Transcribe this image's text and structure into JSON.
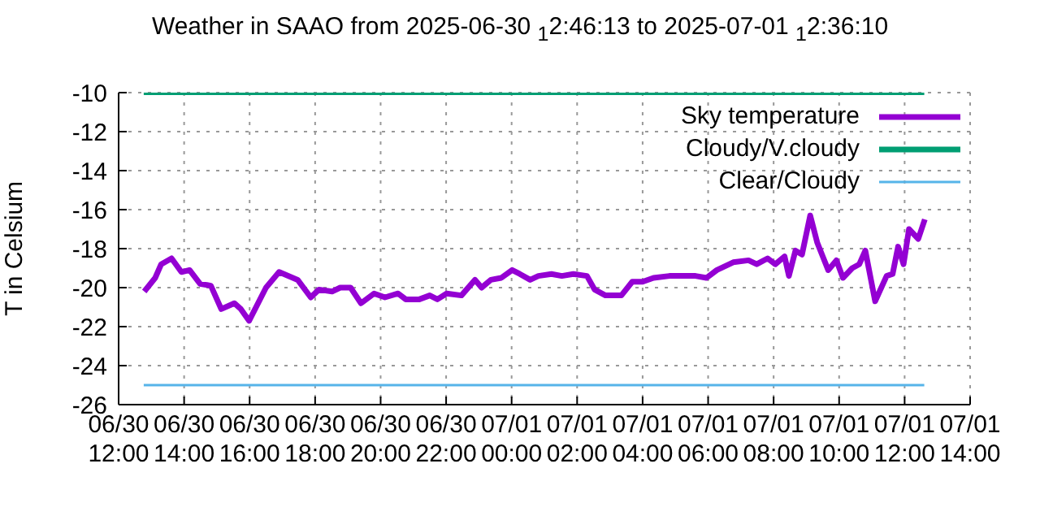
{
  "chart_data": {
    "type": "line",
    "title": "Weather in SAAO from 2025-06-30 $_{1}$2:46:13 to 2025-07-01 $_{1}$2:36:10",
    "ylabel": "T in Celsium",
    "xlim": [
      "2025-06-30T12:00",
      "2025-07-01T14:00"
    ],
    "xticks": [
      {
        "value": "2025-06-30T12:00",
        "label": "06/30\n12:00"
      },
      {
        "value": "2025-06-30T14:00",
        "label": "06/30\n14:00"
      },
      {
        "value": "2025-06-30T16:00",
        "label": "06/30\n16:00"
      },
      {
        "value": "2025-06-30T18:00",
        "label": "06/30\n18:00"
      },
      {
        "value": "2025-06-30T20:00",
        "label": "06/30\n20:00"
      },
      {
        "value": "2025-06-30T22:00",
        "label": "06/30\n22:00"
      },
      {
        "value": "2025-07-01T00:00",
        "label": "07/01\n00:00"
      },
      {
        "value": "2025-07-01T02:00",
        "label": "07/01\n02:00"
      },
      {
        "value": "2025-07-01T04:00",
        "label": "07/01\n04:00"
      },
      {
        "value": "2025-07-01T06:00",
        "label": "07/01\n06:00"
      },
      {
        "value": "2025-07-01T08:00",
        "label": "07/01\n08:00"
      },
      {
        "value": "2025-07-01T10:00",
        "label": "07/01\n10:00"
      },
      {
        "value": "2025-07-01T12:00",
        "label": "07/01\n12:00"
      },
      {
        "value": "2025-07-01T14:00",
        "label": "07/01\n14:00"
      }
    ],
    "ylim": [
      -26,
      -10
    ],
    "yticks": [
      -26,
      -24,
      -22,
      -20,
      -18,
      -16,
      -14,
      -12,
      -10
    ],
    "grid": true,
    "legend": "top right",
    "marker": "none",
    "series": [
      {
        "name": "Sky temperature",
        "color": "#9400d3",
        "x": [
          "2025-06-30T12:47",
          "2025-06-30T13:07",
          "2025-06-30T13:18",
          "2025-06-30T13:37",
          "2025-06-30T13:55",
          "2025-06-30T14:10",
          "2025-06-30T14:29",
          "2025-06-30T14:49",
          "2025-06-30T15:08",
          "2025-06-30T15:32",
          "2025-06-30T15:44",
          "2025-06-30T15:59",
          "2025-06-30T16:30",
          "2025-06-30T16:54",
          "2025-06-30T17:28",
          "2025-06-30T17:52",
          "2025-06-30T18:07",
          "2025-06-30T18:31",
          "2025-06-30T18:46",
          "2025-06-30T19:05",
          "2025-06-30T19:24",
          "2025-06-30T19:48",
          "2025-06-30T20:08",
          "2025-06-30T20:32",
          "2025-06-30T20:46",
          "2025-06-30T21:11",
          "2025-06-30T21:30",
          "2025-06-30T21:44",
          "2025-06-30T22:01",
          "2025-06-30T22:28",
          "2025-06-30T22:53",
          "2025-06-30T23:05",
          "2025-06-30T23:22",
          "2025-06-30T23:41",
          "2025-07-01T00:01",
          "2025-07-01T00:15",
          "2025-07-01T00:34",
          "2025-07-01T00:49",
          "2025-07-01T01:13",
          "2025-07-01T01:32",
          "2025-07-01T01:53",
          "2025-07-01T02:18",
          "2025-07-01T02:32",
          "2025-07-01T02:52",
          "2025-07-01T03:21",
          "2025-07-01T03:41",
          "2025-07-01T04:00",
          "2025-07-01T04:20",
          "2025-07-01T04:49",
          "2025-07-01T05:37",
          "2025-07-01T05:57",
          "2025-07-01T06:16",
          "2025-07-01T06:46",
          "2025-07-01T07:14",
          "2025-07-01T07:29",
          "2025-07-01T07:49",
          "2025-07-01T08:03",
          "2025-07-01T08:20",
          "2025-07-01T08:28",
          "2025-07-01T08:40",
          "2025-07-01T08:52",
          "2025-07-01T09:07",
          "2025-07-01T09:20",
          "2025-07-01T09:40",
          "2025-07-01T09:55",
          "2025-07-01T10:07",
          "2025-07-01T10:24",
          "2025-07-01T10:37",
          "2025-07-01T10:48",
          "2025-07-01T11:06",
          "2025-07-01T11:27",
          "2025-07-01T11:38",
          "2025-07-01T11:48",
          "2025-07-01T11:58",
          "2025-07-01T12:08",
          "2025-07-01T12:25",
          "2025-07-01T12:37"
        ],
        "values": [
          -20.2,
          -19.5,
          -18.8,
          -18.5,
          -19.2,
          -19.1,
          -19.8,
          -19.9,
          -21.1,
          -20.8,
          -21.1,
          -21.7,
          -20,
          -19.2,
          -19.6,
          -20.5,
          -20.1,
          -20.2,
          -20,
          -20,
          -20.8,
          -20.3,
          -20.5,
          -20.3,
          -20.6,
          -20.6,
          -20.4,
          -20.6,
          -20.3,
          -20.4,
          -19.6,
          -20,
          -19.6,
          -19.5,
          -19.1,
          -19.3,
          -19.6,
          -19.4,
          -19.3,
          -19.4,
          -19.3,
          -19.4,
          -20.1,
          -20.4,
          -20.4,
          -19.7,
          -19.7,
          -19.5,
          -19.4,
          -19.4,
          -19.5,
          -19.1,
          -18.7,
          -18.6,
          -18.8,
          -18.5,
          -18.8,
          -18.4,
          -19.4,
          -18.1,
          -18.3,
          -16.3,
          -17.7,
          -19.1,
          -18.6,
          -19.5,
          -19,
          -18.8,
          -18.1,
          -20.7,
          -19.4,
          -19.3,
          -17.9,
          -18.8,
          -17,
          -17.5,
          -16.5
        ]
      },
      {
        "name": "Cloudy/V.cloudy",
        "color": "#009e73",
        "x": [
          "2025-06-30T12:46",
          "2025-07-01T12:36"
        ],
        "values": [
          -10,
          -10
        ]
      },
      {
        "name": "Clear/Cloudy",
        "color": "#56b4e9",
        "x": [
          "2025-06-30T12:46",
          "2025-07-01T12:36"
        ],
        "values": [
          -25,
          -25
        ]
      }
    ]
  }
}
